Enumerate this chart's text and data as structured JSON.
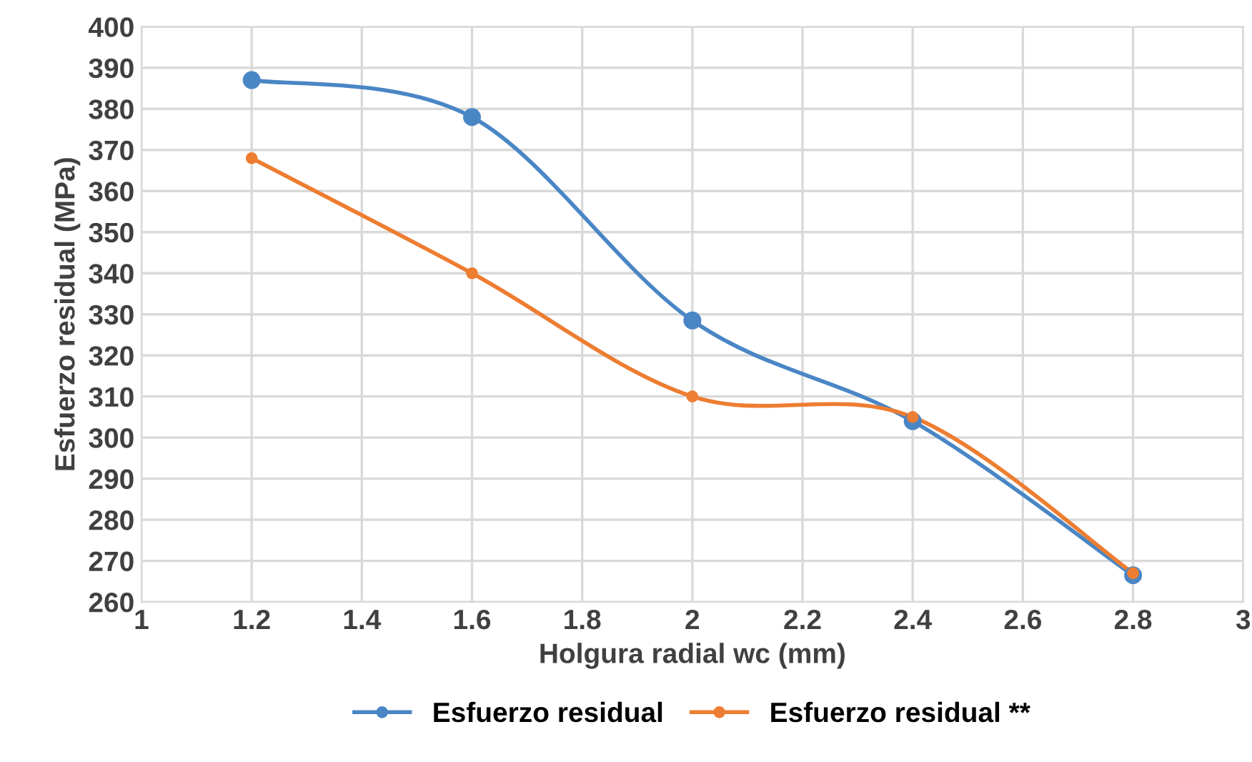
{
  "chart_data": {
    "type": "line",
    "xlabel": "Holgura radial wc (mm)",
    "ylabel": "Esfuerzo residual (MPa)",
    "x": [
      1.2,
      1.6,
      2.0,
      2.4,
      2.8
    ],
    "series": [
      {
        "name": "Esfuerzo residual",
        "color": "#4a86c5",
        "values": [
          387,
          378,
          328.5,
          304,
          266.5
        ]
      },
      {
        "name": "Esfuerzo residual **",
        "color": "#ed7d31",
        "values": [
          368,
          340,
          310,
          305,
          267
        ]
      }
    ],
    "xlim": [
      1,
      3
    ],
    "xticks": [
      1,
      1.2,
      1.4,
      1.6,
      1.8,
      2,
      2.2,
      2.4,
      2.6,
      2.8,
      3
    ],
    "ylim": [
      260,
      400
    ],
    "yticks": [
      260,
      270,
      280,
      290,
      300,
      310,
      320,
      330,
      340,
      350,
      360,
      370,
      380,
      390,
      400
    ],
    "grid": true,
    "legend": "bottom",
    "marker": "circle",
    "line_style": "solid"
  }
}
